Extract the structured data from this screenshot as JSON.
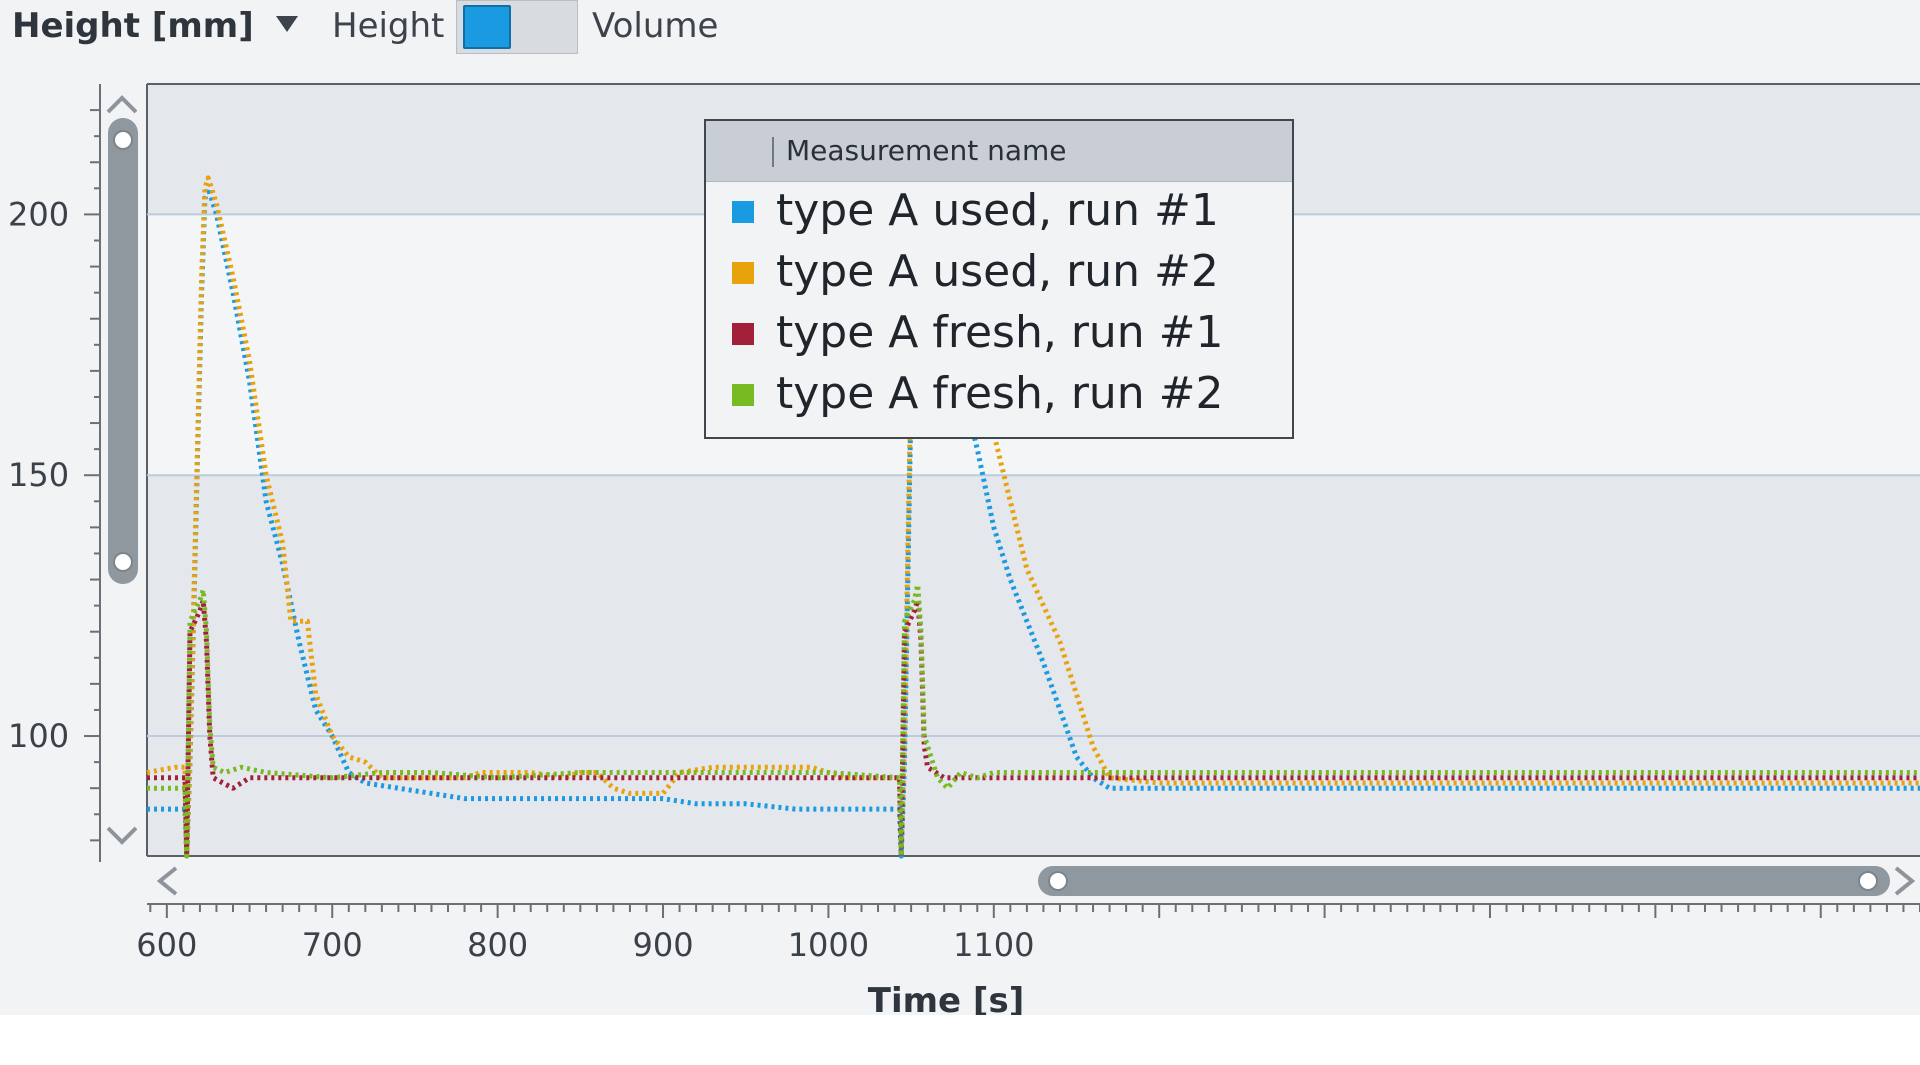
{
  "toolbar": {
    "y_axis_title": "Height [mm]",
    "height_label": "Height",
    "volume_label": "Volume"
  },
  "legend": {
    "header": "Measurement name",
    "items": [
      {
        "label": "type A used, run #1",
        "color": "#1a9ae0"
      },
      {
        "label": "type A used, run #2",
        "color": "#e8a20c"
      },
      {
        "label": "type A fresh, run #1",
        "color": "#a3203a"
      },
      {
        "label": "type A fresh, run #2",
        "color": "#78ba22"
      }
    ]
  },
  "chart_data": {
    "type": "line",
    "xlabel": "Time [s]",
    "ylabel": "Height [mm]",
    "xlim": [
      588,
      1660
    ],
    "ylim": [
      77,
      225
    ],
    "x_ticks": [
      600,
      700,
      800,
      900,
      1000,
      1100
    ],
    "y_ticks": [
      100,
      150,
      200
    ],
    "bands": [
      [
        100,
        150
      ],
      [
        200,
        225
      ]
    ],
    "grid": "horizontal",
    "legend_position": "top-center",
    "series": [
      {
        "name": "type A used, run #1",
        "color": "#1a9ae0",
        "points": [
          [
            588,
            86
          ],
          [
            605,
            86
          ],
          [
            611,
            86
          ],
          [
            612,
            77
          ],
          [
            614,
            95
          ],
          [
            616,
            120
          ],
          [
            619,
            160
          ],
          [
            621,
            185
          ],
          [
            623,
            203
          ],
          [
            625,
            205
          ],
          [
            630,
            200
          ],
          [
            640,
            185
          ],
          [
            650,
            168
          ],
          [
            660,
            145
          ],
          [
            670,
            133
          ],
          [
            680,
            118
          ],
          [
            690,
            105
          ],
          [
            700,
            100
          ],
          [
            710,
            93
          ],
          [
            720,
            91
          ],
          [
            740,
            90
          ],
          [
            760,
            89
          ],
          [
            780,
            88
          ],
          [
            800,
            88
          ],
          [
            820,
            88
          ],
          [
            840,
            88
          ],
          [
            860,
            88
          ],
          [
            880,
            88
          ],
          [
            900,
            88
          ],
          [
            920,
            87
          ],
          [
            950,
            87
          ],
          [
            980,
            86
          ],
          [
            1000,
            86
          ],
          [
            1020,
            86
          ],
          [
            1040,
            86
          ],
          [
            1043,
            86
          ],
          [
            1044,
            77
          ],
          [
            1046,
            95
          ],
          [
            1048,
            130
          ],
          [
            1050,
            165
          ],
          [
            1053,
            195
          ],
          [
            1055,
            203
          ],
          [
            1060,
            197
          ],
          [
            1070,
            185
          ],
          [
            1080,
            168
          ],
          [
            1090,
            155
          ],
          [
            1100,
            140
          ],
          [
            1110,
            130
          ],
          [
            1120,
            122
          ],
          [
            1130,
            114
          ],
          [
            1140,
            105
          ],
          [
            1150,
            96
          ],
          [
            1160,
            92
          ],
          [
            1170,
            90
          ],
          [
            1200,
            90
          ],
          [
            1250,
            90
          ],
          [
            1300,
            90
          ],
          [
            1400,
            90
          ],
          [
            1500,
            90
          ],
          [
            1600,
            90
          ],
          [
            1660,
            90
          ]
        ]
      },
      {
        "name": "type A used, run #2",
        "color": "#e8a20c",
        "points": [
          [
            588,
            93
          ],
          [
            605,
            94
          ],
          [
            611,
            94
          ],
          [
            612,
            77
          ],
          [
            614,
            96
          ],
          [
            616,
            122
          ],
          [
            619,
            162
          ],
          [
            621,
            188
          ],
          [
            623,
            205
          ],
          [
            625,
            207
          ],
          [
            630,
            202
          ],
          [
            640,
            188
          ],
          [
            650,
            172
          ],
          [
            660,
            150
          ],
          [
            670,
            137
          ],
          [
            675,
            122
          ],
          [
            685,
            122
          ],
          [
            690,
            108
          ],
          [
            700,
            100
          ],
          [
            710,
            96
          ],
          [
            720,
            95
          ],
          [
            730,
            92
          ],
          [
            760,
            92
          ],
          [
            780,
            92
          ],
          [
            790,
            93
          ],
          [
            800,
            93
          ],
          [
            820,
            93
          ],
          [
            840,
            92
          ],
          [
            850,
            93
          ],
          [
            860,
            93
          ],
          [
            870,
            90
          ],
          [
            880,
            89
          ],
          [
            900,
            89
          ],
          [
            910,
            93
          ],
          [
            930,
            94
          ],
          [
            960,
            94
          ],
          [
            990,
            94
          ],
          [
            1010,
            92
          ],
          [
            1040,
            92
          ],
          [
            1043,
            92
          ],
          [
            1044,
            77
          ],
          [
            1046,
            100
          ],
          [
            1048,
            135
          ],
          [
            1050,
            170
          ],
          [
            1053,
            198
          ],
          [
            1055,
            205
          ],
          [
            1060,
            200
          ],
          [
            1070,
            188
          ],
          [
            1080,
            180
          ],
          [
            1090,
            168
          ],
          [
            1100,
            158
          ],
          [
            1110,
            145
          ],
          [
            1120,
            132
          ],
          [
            1130,
            125
          ],
          [
            1140,
            118
          ],
          [
            1150,
            108
          ],
          [
            1160,
            98
          ],
          [
            1170,
            92
          ],
          [
            1200,
            91
          ],
          [
            1250,
            91
          ],
          [
            1300,
            91
          ],
          [
            1400,
            91
          ],
          [
            1500,
            91
          ],
          [
            1600,
            91
          ],
          [
            1660,
            91
          ]
        ]
      },
      {
        "name": "type A fresh, run #1",
        "color": "#a3203a",
        "points": [
          [
            588,
            92
          ],
          [
            611,
            92
          ],
          [
            612,
            77
          ],
          [
            614,
            120
          ],
          [
            620,
            124
          ],
          [
            622,
            126
          ],
          [
            624,
            118
          ],
          [
            626,
            100
          ],
          [
            628,
            92
          ],
          [
            640,
            90
          ],
          [
            650,
            92
          ],
          [
            680,
            92
          ],
          [
            700,
            92
          ],
          [
            750,
            92
          ],
          [
            800,
            92
          ],
          [
            850,
            92
          ],
          [
            900,
            92
          ],
          [
            950,
            92
          ],
          [
            1000,
            92
          ],
          [
            1043,
            92
          ],
          [
            1044,
            77
          ],
          [
            1046,
            120
          ],
          [
            1052,
            124
          ],
          [
            1054,
            126
          ],
          [
            1056,
            118
          ],
          [
            1058,
            98
          ],
          [
            1060,
            94
          ],
          [
            1070,
            92
          ],
          [
            1100,
            92
          ],
          [
            1200,
            92
          ],
          [
            1300,
            92
          ],
          [
            1400,
            92
          ],
          [
            1500,
            92
          ],
          [
            1600,
            92
          ],
          [
            1660,
            92
          ]
        ]
      },
      {
        "name": "type A fresh, run #2",
        "color": "#78ba22",
        "points": [
          [
            588,
            90
          ],
          [
            611,
            90
          ],
          [
            612,
            77
          ],
          [
            614,
            122
          ],
          [
            620,
            126
          ],
          [
            622,
            128
          ],
          [
            624,
            120
          ],
          [
            626,
            102
          ],
          [
            628,
            94
          ],
          [
            635,
            93
          ],
          [
            645,
            94
          ],
          [
            660,
            93
          ],
          [
            700,
            92
          ],
          [
            730,
            93
          ],
          [
            760,
            93
          ],
          [
            800,
            92
          ],
          [
            850,
            93
          ],
          [
            900,
            93
          ],
          [
            950,
            93
          ],
          [
            1000,
            93
          ],
          [
            1043,
            92
          ],
          [
            1044,
            77
          ],
          [
            1046,
            122
          ],
          [
            1052,
            126
          ],
          [
            1054,
            129
          ],
          [
            1056,
            120
          ],
          [
            1058,
            100
          ],
          [
            1062,
            96
          ],
          [
            1066,
            92
          ],
          [
            1072,
            90
          ],
          [
            1080,
            93
          ],
          [
            1090,
            92
          ],
          [
            1100,
            93
          ],
          [
            1150,
            93
          ],
          [
            1200,
            93
          ],
          [
            1300,
            93
          ],
          [
            1400,
            93
          ],
          [
            1500,
            93
          ],
          [
            1600,
            93
          ],
          [
            1660,
            93
          ]
        ]
      }
    ]
  }
}
